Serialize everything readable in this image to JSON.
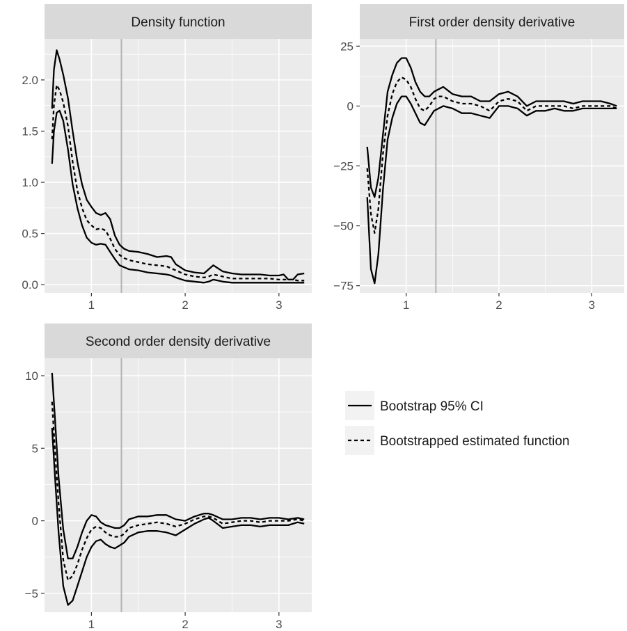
{
  "chart_data": [
    {
      "type": "line",
      "title": "Density function",
      "xlim": [
        0.5,
        3.35
      ],
      "ylim": [
        -0.08,
        2.4
      ],
      "x_ticks": [
        1,
        2,
        3
      ],
      "x_tick_labels": [
        "1",
        "2",
        "3"
      ],
      "y_ticks": [
        0,
        0.5,
        1,
        1.5,
        2
      ],
      "y_tick_labels": [
        "0.0",
        "0.5",
        "1.0",
        "1.5",
        "2.0"
      ],
      "vline": 1.32,
      "x": [
        0.58,
        0.6,
        0.63,
        0.66,
        0.7,
        0.75,
        0.8,
        0.85,
        0.9,
        0.95,
        1.0,
        1.05,
        1.1,
        1.15,
        1.2,
        1.25,
        1.3,
        1.35,
        1.4,
        1.5,
        1.6,
        1.7,
        1.8,
        1.85,
        1.9,
        2.0,
        2.1,
        2.2,
        2.25,
        2.3,
        2.35,
        2.4,
        2.5,
        2.6,
        2.7,
        2.8,
        2.9,
        3.0,
        3.05,
        3.1,
        3.15,
        3.2,
        3.27
      ],
      "series": [
        {
          "name": "Bootstrap 95% CI",
          "style": "solid",
          "values": [
            1.18,
            1.5,
            1.68,
            1.7,
            1.6,
            1.32,
            0.98,
            0.75,
            0.58,
            0.46,
            0.41,
            0.39,
            0.4,
            0.39,
            0.32,
            0.25,
            0.19,
            0.17,
            0.15,
            0.14,
            0.12,
            0.11,
            0.1,
            0.09,
            0.07,
            0.04,
            0.03,
            0.02,
            0.03,
            0.05,
            0.04,
            0.03,
            0.02,
            0.02,
            0.02,
            0.02,
            0.02,
            0.02,
            0.02,
            0.02,
            0.02,
            0.02,
            0.02
          ]
        },
        {
          "name": "Bootstrapped estimated function",
          "style": "dashed",
          "values": [
            1.42,
            1.75,
            1.95,
            1.9,
            1.78,
            1.55,
            1.2,
            0.92,
            0.75,
            0.63,
            0.58,
            0.54,
            0.55,
            0.53,
            0.45,
            0.35,
            0.29,
            0.26,
            0.24,
            0.22,
            0.2,
            0.19,
            0.18,
            0.16,
            0.14,
            0.1,
            0.08,
            0.07,
            0.08,
            0.1,
            0.09,
            0.08,
            0.06,
            0.06,
            0.06,
            0.06,
            0.06,
            0.05,
            0.05,
            0.05,
            0.05,
            0.04,
            0.04
          ]
        },
        {
          "name": "Bootstrap 95% CI",
          "style": "solid",
          "values": [
            1.72,
            2.1,
            2.29,
            2.2,
            2.05,
            1.82,
            1.5,
            1.2,
            0.98,
            0.83,
            0.76,
            0.7,
            0.68,
            0.7,
            0.64,
            0.48,
            0.39,
            0.35,
            0.33,
            0.32,
            0.3,
            0.27,
            0.28,
            0.27,
            0.2,
            0.14,
            0.12,
            0.11,
            0.15,
            0.19,
            0.16,
            0.13,
            0.11,
            0.1,
            0.1,
            0.1,
            0.09,
            0.09,
            0.1,
            0.05,
            0.05,
            0.1,
            0.11
          ]
        }
      ]
    },
    {
      "type": "line",
      "title": "First order density derivative",
      "xlim": [
        0.5,
        3.35
      ],
      "ylim": [
        -78,
        28
      ],
      "x_ticks": [
        1,
        2,
        3
      ],
      "x_tick_labels": [
        "1",
        "2",
        "3"
      ],
      "y_ticks": [
        25,
        0,
        -25,
        -50,
        -75
      ],
      "y_tick_labels": [
        "25",
        "0",
        "-25",
        "-50",
        "-75"
      ],
      "vline": 1.32,
      "x": [
        0.58,
        0.62,
        0.66,
        0.7,
        0.75,
        0.8,
        0.85,
        0.9,
        0.95,
        1.0,
        1.05,
        1.1,
        1.15,
        1.2,
        1.25,
        1.3,
        1.35,
        1.4,
        1.5,
        1.6,
        1.7,
        1.8,
        1.9,
        2.0,
        2.1,
        2.2,
        2.3,
        2.4,
        2.5,
        2.6,
        2.7,
        2.8,
        2.9,
        3.0,
        3.1,
        3.2,
        3.27
      ],
      "series": [
        {
          "name": "Bootstrap 95% CI",
          "style": "solid",
          "values": [
            -38,
            -68,
            -74,
            -62,
            -35,
            -14,
            -5,
            1,
            4,
            4,
            1,
            -3,
            -7,
            -8,
            -5,
            -2,
            -1,
            0,
            -1,
            -3,
            -3,
            -4,
            -5,
            0,
            0,
            -1,
            -4,
            -2,
            -2,
            -1,
            -2,
            -2,
            -1,
            -1,
            -1,
            -1,
            -1
          ]
        },
        {
          "name": "Bootstrapped estimated function",
          "style": "dashed",
          "values": [
            -26,
            -45,
            -53,
            -43,
            -20,
            -4,
            5,
            10,
            12,
            11,
            8,
            3,
            -1,
            -2,
            0,
            3,
            4,
            4,
            2,
            1,
            1,
            0,
            -2,
            2,
            3,
            2,
            -2,
            0,
            0,
            0,
            0,
            -1,
            0,
            0,
            0,
            0,
            -1
          ]
        },
        {
          "name": "Bootstrap 95% CI",
          "style": "solid",
          "values": [
            -17,
            -34,
            -38,
            -30,
            -12,
            6,
            13,
            18,
            20,
            20,
            16,
            10,
            6,
            4,
            4,
            6,
            7,
            8,
            5,
            4,
            4,
            2,
            2,
            5,
            6,
            4,
            0,
            2,
            2,
            2,
            2,
            1,
            2,
            2,
            2,
            1,
            0
          ]
        }
      ]
    },
    {
      "type": "line",
      "title": "Second order density derivative",
      "xlim": [
        0.5,
        3.35
      ],
      "ylim": [
        -6.3,
        11.2
      ],
      "x_ticks": [
        1,
        2,
        3
      ],
      "x_tick_labels": [
        "1",
        "2",
        "3"
      ],
      "y_ticks": [
        10,
        5,
        0,
        -5
      ],
      "y_tick_labels": [
        "10",
        "5",
        "0",
        "-5"
      ],
      "vline": 1.32,
      "x": [
        0.58,
        0.61,
        0.65,
        0.7,
        0.75,
        0.8,
        0.85,
        0.9,
        0.95,
        1.0,
        1.05,
        1.1,
        1.15,
        1.2,
        1.25,
        1.3,
        1.35,
        1.4,
        1.5,
        1.6,
        1.7,
        1.8,
        1.9,
        2.0,
        2.1,
        2.2,
        2.25,
        2.3,
        2.4,
        2.5,
        2.6,
        2.7,
        2.8,
        2.9,
        3.0,
        3.1,
        3.2,
        3.27
      ],
      "series": [
        {
          "name": "Bootstrap 95% CI",
          "style": "solid",
          "values": [
            6.4,
            3.2,
            -0.8,
            -4.5,
            -5.8,
            -5.5,
            -4.5,
            -3.5,
            -2.5,
            -1.8,
            -1.4,
            -1.3,
            -1.6,
            -1.8,
            -1.9,
            -1.7,
            -1.5,
            -1.1,
            -0.8,
            -0.7,
            -0.7,
            -0.8,
            -1.0,
            -0.6,
            -0.2,
            0.1,
            0.2,
            0.0,
            -0.5,
            -0.4,
            -0.3,
            -0.3,
            -0.4,
            -0.3,
            -0.3,
            -0.3,
            -0.1,
            -0.2
          ]
        },
        {
          "name": "Bootstrapped estimated function",
          "style": "dashed",
          "values": [
            8.2,
            5.0,
            1.2,
            -2.7,
            -4.1,
            -3.8,
            -3.0,
            -2.0,
            -1.2,
            -0.6,
            -0.4,
            -0.5,
            -0.8,
            -1.0,
            -1.1,
            -1.1,
            -0.9,
            -0.5,
            -0.3,
            -0.2,
            -0.1,
            -0.2,
            -0.4,
            -0.2,
            0.1,
            0.3,
            0.3,
            0.2,
            -0.2,
            -0.1,
            0.0,
            0.0,
            -0.1,
            0.0,
            0.0,
            0.0,
            0.1,
            0.0
          ]
        },
        {
          "name": "Bootstrap 95% CI",
          "style": "solid",
          "values": [
            10.2,
            7.2,
            3.0,
            -0.6,
            -2.6,
            -2.6,
            -1.8,
            -0.8,
            0.0,
            0.4,
            0.3,
            -0.1,
            -0.3,
            -0.4,
            -0.5,
            -0.5,
            -0.3,
            0.1,
            0.3,
            0.3,
            0.4,
            0.4,
            0.1,
            0.0,
            0.3,
            0.5,
            0.5,
            0.4,
            0.1,
            0.1,
            0.2,
            0.2,
            0.1,
            0.2,
            0.2,
            0.1,
            0.2,
            0.1
          ]
        }
      ]
    }
  ],
  "legend": {
    "items": [
      {
        "label": "Bootstrap 95% CI",
        "style": "solid"
      },
      {
        "label": "Bootstrapped estimated function",
        "style": "dashed"
      }
    ]
  }
}
